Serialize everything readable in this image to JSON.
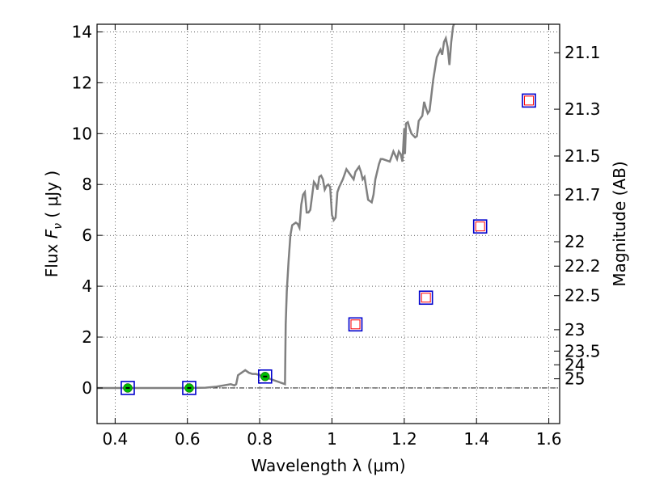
{
  "chart_data": {
    "type": "scatter",
    "xlabel": "Wavelength  λ (μm)",
    "ylabel": "Flux  F_ν  ( μJy )",
    "ylabel_parts": {
      "prefix": "Flux  ",
      "symbol": "F",
      "sub": "ν",
      "suffix": "  ( μJy )"
    },
    "right_ylabel": "Magnitude (AB)",
    "xlim": [
      0.35,
      1.63
    ],
    "ylim": [
      -1.4,
      14.3
    ],
    "grid": true,
    "x_ticks": [
      {
        "value": 0.4,
        "label": "0.4"
      },
      {
        "value": 0.6,
        "label": "0.6"
      },
      {
        "value": 0.8,
        "label": "0.8"
      },
      {
        "value": 1.0,
        "label": "1"
      },
      {
        "value": 1.2,
        "label": "1.2"
      },
      {
        "value": 1.4,
        "label": "1.4"
      },
      {
        "value": 1.6,
        "label": "1.6"
      }
    ],
    "y_ticks": [
      {
        "value": 0,
        "label": "0"
      },
      {
        "value": 2,
        "label": "2"
      },
      {
        "value": 4,
        "label": "4"
      },
      {
        "value": 6,
        "label": "6"
      },
      {
        "value": 8,
        "label": "8"
      },
      {
        "value": 10,
        "label": "10"
      },
      {
        "value": 12,
        "label": "12"
      },
      {
        "value": 14,
        "label": "14"
      }
    ],
    "magnitude_ticks": [
      {
        "flux": 13.18,
        "label": "21.1"
      },
      {
        "flux": 10.96,
        "label": "21.3"
      },
      {
        "flux": 9.12,
        "label": "21.5"
      },
      {
        "flux": 7.59,
        "label": "21.7"
      },
      {
        "flux": 5.75,
        "label": "22"
      },
      {
        "flux": 4.79,
        "label": "22.2"
      },
      {
        "flux": 3.63,
        "label": "22.5"
      },
      {
        "flux": 2.29,
        "label": "23"
      },
      {
        "flux": 1.45,
        "label": "23.5"
      },
      {
        "flux": 0.91,
        "label": "24"
      },
      {
        "flux": 0.36,
        "label": "25"
      }
    ],
    "series": [
      {
        "kind": "line",
        "color": "#808080",
        "x": [
          0.35,
          0.6,
          0.65,
          0.68,
          0.7,
          0.72,
          0.73,
          0.735,
          0.74,
          0.745,
          0.75,
          0.755,
          0.76,
          0.77,
          0.78,
          0.79,
          0.8,
          0.81,
          0.82,
          0.83,
          0.84,
          0.85,
          0.86,
          0.87,
          0.872,
          0.875,
          0.88,
          0.885,
          0.89,
          0.9,
          0.905,
          0.91,
          0.915,
          0.92,
          0.925,
          0.93,
          0.935,
          0.94,
          0.95,
          0.955,
          0.96,
          0.965,
          0.97,
          0.975,
          0.98,
          0.985,
          0.99,
          0.995,
          1.0,
          1.005,
          1.01,
          1.015,
          1.02,
          1.03,
          1.035,
          1.04,
          1.05,
          1.06,
          1.065,
          1.07,
          1.075,
          1.08,
          1.085,
          1.09,
          1.1,
          1.11,
          1.115,
          1.12,
          1.13,
          1.135,
          1.14,
          1.15,
          1.16,
          1.17,
          1.18,
          1.185,
          1.19,
          1.195,
          1.2,
          1.202,
          1.205,
          1.21,
          1.215,
          1.22,
          1.23,
          1.235,
          1.24,
          1.25,
          1.255,
          1.26,
          1.265,
          1.27,
          1.28,
          1.29,
          1.3,
          1.305,
          1.31,
          1.315,
          1.32,
          1.325,
          1.33,
          1.335,
          1.34
        ],
        "y": [
          0.0,
          0.0,
          0.01,
          0.05,
          0.1,
          0.15,
          0.1,
          0.15,
          0.5,
          0.55,
          0.6,
          0.65,
          0.7,
          0.6,
          0.55,
          0.55,
          0.5,
          0.45,
          0.4,
          0.35,
          0.3,
          0.25,
          0.2,
          0.15,
          2.5,
          3.8,
          5.0,
          6.0,
          6.4,
          6.5,
          6.45,
          6.3,
          7.2,
          7.6,
          7.7,
          6.9,
          6.9,
          7.0,
          8.1,
          8.0,
          7.8,
          8.3,
          8.35,
          8.2,
          7.8,
          7.95,
          8.0,
          7.9,
          6.8,
          6.6,
          6.7,
          7.7,
          7.9,
          8.2,
          8.4,
          8.6,
          8.4,
          8.2,
          8.5,
          8.6,
          8.7,
          8.5,
          8.2,
          8.3,
          7.4,
          7.3,
          7.6,
          8.2,
          8.8,
          9.0,
          9.0,
          8.95,
          8.9,
          9.3,
          9.0,
          9.3,
          9.2,
          8.9,
          10.2,
          9.2,
          10.4,
          10.45,
          10.2,
          10.0,
          9.85,
          9.9,
          10.5,
          10.7,
          11.25,
          11.0,
          10.8,
          10.9,
          12.1,
          13.0,
          13.3,
          13.1,
          13.6,
          13.75,
          13.4,
          12.7,
          13.6,
          14.2,
          14.4
        ]
      },
      {
        "kind": "markers",
        "name": "blue squares",
        "color": "#0000cc",
        "x": [
          0.435,
          0.605,
          0.815,
          1.065,
          1.26,
          1.41,
          1.545
        ],
        "y": [
          0.0,
          0.0,
          0.45,
          2.5,
          3.55,
          6.35,
          11.3
        ]
      },
      {
        "kind": "markers",
        "name": "green circles",
        "color": "#00bb00",
        "x": [
          0.435,
          0.605,
          0.815
        ],
        "y": [
          0.0,
          0.0,
          0.45
        ]
      },
      {
        "kind": "markers",
        "name": "red squares",
        "color": "#ff0000",
        "x": [
          1.065,
          1.26,
          1.41,
          1.545
        ],
        "y": [
          2.5,
          3.55,
          6.35,
          11.3
        ]
      }
    ]
  }
}
